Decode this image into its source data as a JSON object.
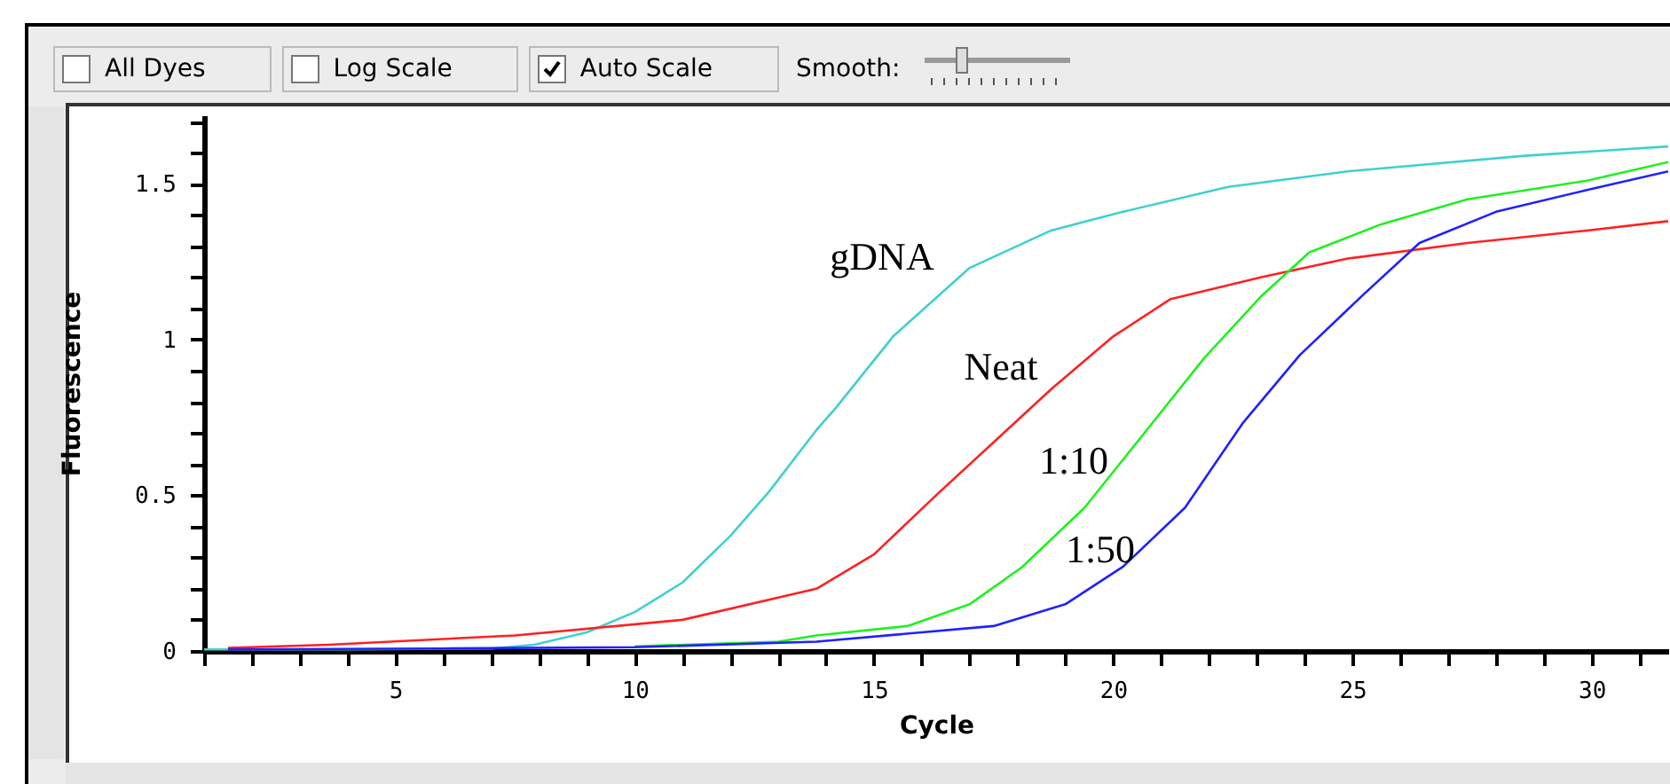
{
  "chart_data": {
    "type": "line",
    "xlabel": "Cycle",
    "ylabel": "Fluorescence",
    "xlim": [
      1,
      31.6
    ],
    "ylim": [
      0,
      1.72
    ],
    "xticks": [
      {
        "value": 1,
        "label": null
      },
      {
        "value": 2,
        "label": null
      },
      {
        "value": 3,
        "label": null
      },
      {
        "value": 4,
        "label": null
      },
      5,
      {
        "value": 6,
        "label": null
      },
      {
        "value": 7,
        "label": null
      },
      {
        "value": 8,
        "label": null
      },
      {
        "value": 9,
        "label": null
      },
      10,
      {
        "value": 11,
        "label": null
      },
      {
        "value": 12,
        "label": null
      },
      {
        "value": 13,
        "label": null
      },
      {
        "value": 14,
        "label": null
      },
      15,
      {
        "value": 16,
        "label": null
      },
      {
        "value": 17,
        "label": null
      },
      {
        "value": 18,
        "label": null
      },
      {
        "value": 19,
        "label": null
      },
      20,
      {
        "value": 21,
        "label": null
      },
      {
        "value": 22,
        "label": null
      },
      {
        "value": 23,
        "label": null
      },
      {
        "value": 24,
        "label": null
      },
      25,
      {
        "value": 26,
        "label": null
      },
      {
        "value": 27,
        "label": null
      },
      {
        "value": 28,
        "label": null
      },
      {
        "value": 29,
        "label": null
      },
      30,
      {
        "value": 31,
        "label": null
      }
    ],
    "yticks": [
      0,
      {
        "value": 0.1,
        "label": null
      },
      {
        "value": 0.2,
        "label": null
      },
      {
        "value": 0.3,
        "label": null
      },
      {
        "value": 0.4,
        "label": null
      },
      {
        "value": 0.5,
        "label": "0.5"
      },
      {
        "value": 0.6,
        "label": null
      },
      {
        "value": 0.7,
        "label": null
      },
      {
        "value": 0.8,
        "label": null
      },
      {
        "value": 0.9,
        "label": null
      },
      1,
      {
        "value": 1.1,
        "label": null
      },
      {
        "value": 1.2,
        "label": null
      },
      {
        "value": 1.3,
        "label": null
      },
      {
        "value": 1.4,
        "label": null
      },
      {
        "value": 1.5,
        "label": "1.5"
      },
      {
        "value": 1.6,
        "label": null
      },
      {
        "value": 1.7,
        "label": null
      }
    ],
    "grid": false,
    "marker": "none",
    "line_style": "solid",
    "series": [
      {
        "name": "gDNA",
        "color": "#40d0d0",
        "x": [
          1,
          4,
          7,
          7.9,
          9,
          10,
          11,
          12,
          12.8,
          13.8,
          14.2,
          15.4,
          17,
          18.7,
          20.2,
          22.4,
          24.9,
          28.6,
          31.6
        ],
        "values": [
          0.005,
          0.005,
          0.008,
          0.02,
          0.06,
          0.125,
          0.22,
          0.37,
          0.51,
          0.71,
          0.78,
          1.01,
          1.23,
          1.35,
          1.41,
          1.49,
          1.54,
          1.59,
          1.62
        ]
      },
      {
        "name": "Neat",
        "color": "#ff2020",
        "x": [
          1.5,
          3.6,
          7.5,
          11,
          13.8,
          15,
          16.3,
          17.5,
          18.7,
          20,
          21.2,
          23.1,
          24.9,
          27.4,
          29.9,
          31.6
        ],
        "values": [
          0.01,
          0.02,
          0.05,
          0.1,
          0.2,
          0.31,
          0.5,
          0.67,
          0.84,
          1.01,
          1.13,
          1.2,
          1.26,
          1.31,
          1.35,
          1.38
        ]
      },
      {
        "name": "1:10",
        "color": "#20f020",
        "x": [
          10,
          13,
          13.8,
          15.7,
          17,
          18.1,
          19.4,
          20.6,
          21.9,
          23.1,
          24.1,
          25.6,
          27.4,
          29.9,
          31.6
        ],
        "values": [
          0.015,
          0.03,
          0.05,
          0.08,
          0.15,
          0.27,
          0.46,
          0.69,
          0.94,
          1.14,
          1.28,
          1.37,
          1.45,
          1.51,
          1.57
        ]
      },
      {
        "name": "1:50",
        "color": "#2020ff",
        "x": [
          1.5,
          6,
          10,
          13.8,
          17.5,
          19,
          20.2,
          21.5,
          22.7,
          23.9,
          25.2,
          26.4,
          28,
          29.9,
          31.6
        ],
        "values": [
          0.005,
          0.008,
          0.012,
          0.03,
          0.08,
          0.15,
          0.27,
          0.46,
          0.73,
          0.95,
          1.14,
          1.31,
          1.41,
          1.48,
          1.54
        ]
      }
    ],
    "annotations": [
      "All Dyes",
      "Log Scale",
      "Auto Scale",
      "Smooth:"
    ]
  }
}
